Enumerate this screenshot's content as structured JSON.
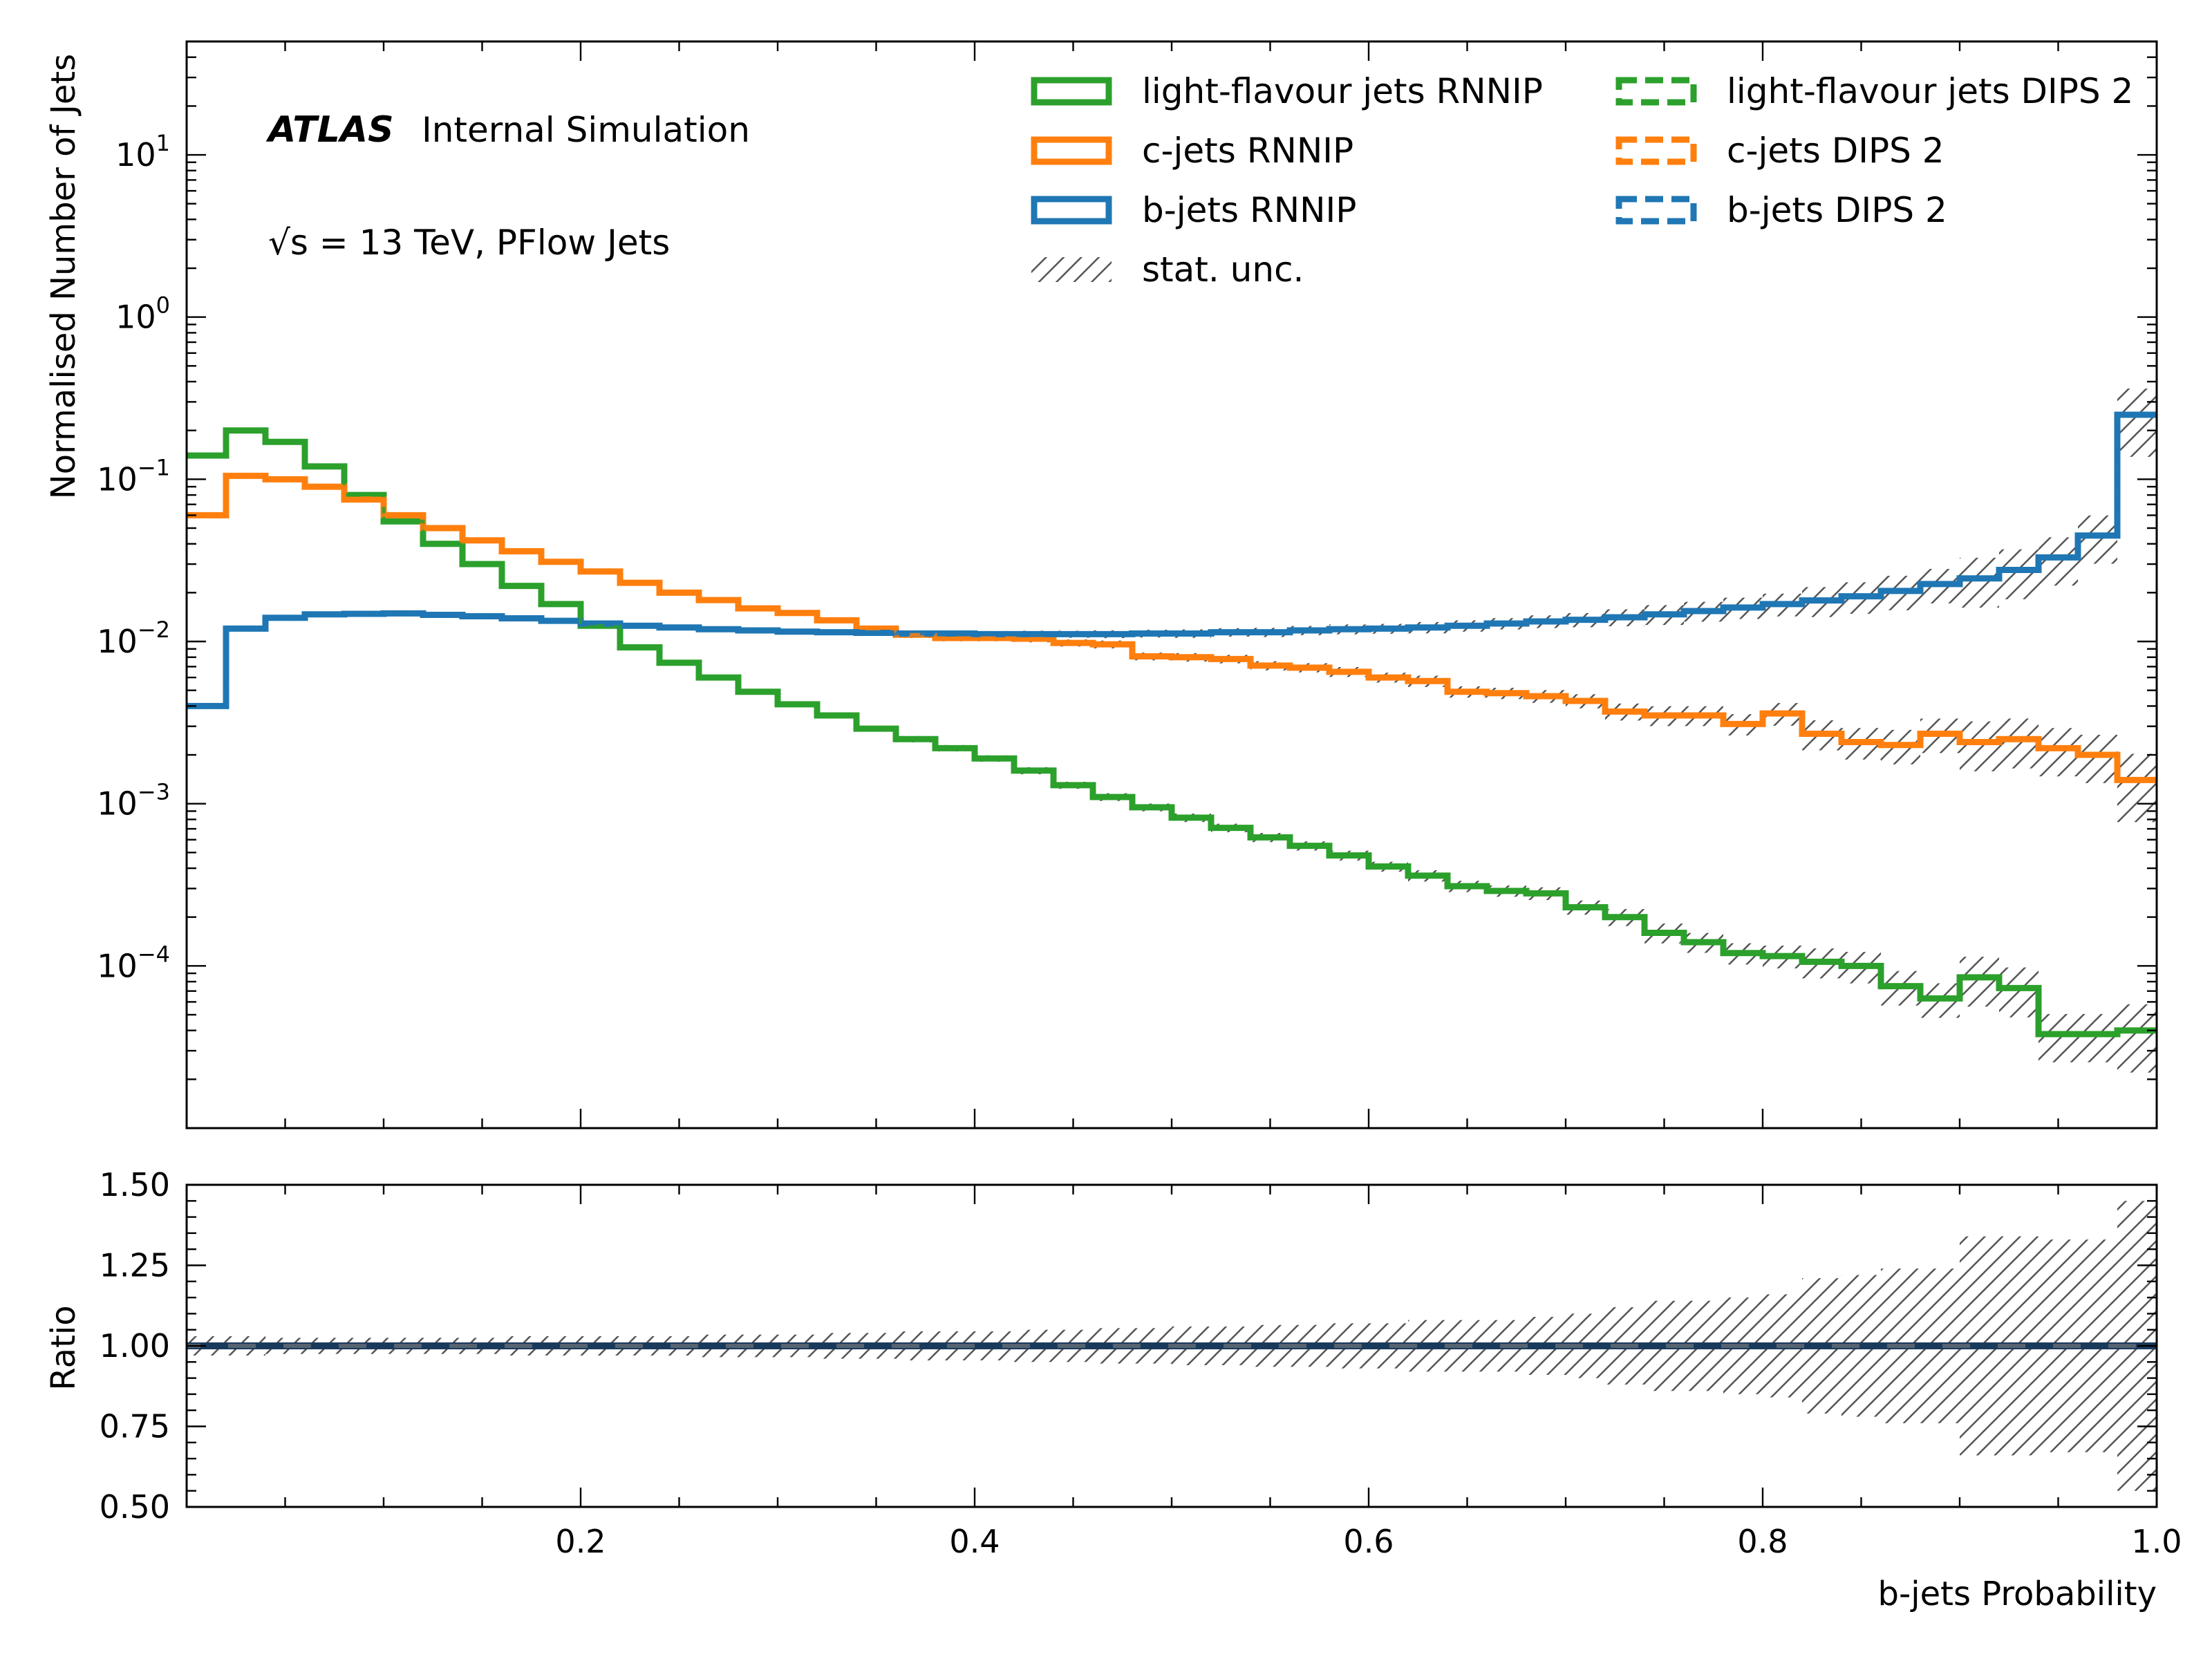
{
  "colors": {
    "light": "#2ca02c",
    "c": "#ff7f0e",
    "b": "#1f77b4",
    "unc": "#555555",
    "ratio_line": "#1a3a5c"
  },
  "atlas": {
    "brand": "ATLAS",
    "status": "Internal Simulation",
    "energy": "√s = 13 TeV, PFlow Jets"
  },
  "legend": [
    {
      "label": "light-flavour jets RNNIP",
      "style": "solid",
      "color": "light"
    },
    {
      "label": "c-jets RNNIP",
      "style": "solid",
      "color": "c"
    },
    {
      "label": "b-jets RNNIP",
      "style": "solid",
      "color": "b"
    },
    {
      "label": "stat. unc.",
      "style": "hatch",
      "color": "unc"
    },
    {
      "label": "light-flavour jets DIPS 2",
      "style": "dashed",
      "color": "light"
    },
    {
      "label": "c-jets DIPS 2",
      "style": "dashed",
      "color": "c"
    },
    {
      "label": "b-jets DIPS 2",
      "style": "dashed",
      "color": "b"
    }
  ],
  "chart_data": {
    "type": "step-histogram",
    "xlabel": "b-jets Probability",
    "xlim": [
      0,
      1
    ],
    "x_ticks": [
      "0.2",
      "0.4",
      "0.6",
      "0.8",
      "1.0"
    ],
    "bin_edges": [
      0,
      0.02,
      0.04,
      0.06,
      0.08,
      0.1,
      0.12,
      0.14,
      0.16,
      0.18,
      0.2,
      0.22,
      0.24,
      0.26,
      0.28,
      0.3,
      0.32,
      0.34,
      0.36,
      0.38,
      0.4,
      0.42,
      0.44,
      0.46,
      0.48,
      0.5,
      0.52,
      0.54,
      0.56,
      0.58,
      0.6,
      0.62,
      0.64,
      0.66,
      0.68,
      0.7,
      0.72,
      0.74,
      0.76,
      0.78,
      0.8,
      0.82,
      0.84,
      0.86,
      0.88,
      0.9,
      0.92,
      0.94,
      0.96,
      0.98,
      1.0
    ],
    "top": {
      "ylabel": "Normalised Number of Jets",
      "yscale": "log",
      "ylim": [
        1e-05,
        50
      ],
      "y_ticks": [
        {
          "base": "10",
          "exp": "1"
        },
        {
          "base": "10",
          "exp": "0"
        },
        {
          "base": "10",
          "exp": "−1"
        },
        {
          "base": "10",
          "exp": "−2"
        },
        {
          "base": "10",
          "exp": "−3"
        },
        {
          "base": "10",
          "exp": "−4"
        }
      ],
      "series": [
        {
          "name": "light-flavour jets RNNIP",
          "color": "light",
          "values": [
            0.14,
            0.2,
            0.17,
            0.12,
            0.08,
            0.055,
            0.04,
            0.03,
            0.022,
            0.017,
            0.0125,
            0.0092,
            0.0074,
            0.006,
            0.0049,
            0.0041,
            0.0035,
            0.0029,
            0.0025,
            0.0022,
            0.0019,
            0.0016,
            0.0013,
            0.0011,
            0.00095,
            0.00082,
            0.00071,
            0.00062,
            0.00055,
            0.00048,
            0.00041,
            0.00036,
            0.00031,
            0.00029,
            0.00028,
            0.00023,
            0.0002,
            0.00016,
            0.00014,
            0.00012,
            0.000115,
            0.000106,
            0.0001,
            7.5e-05,
            6.3e-05,
            8.5e-05,
            7.3e-05,
            3.8e-05,
            3.8e-05,
            4e-05
          ]
        },
        {
          "name": "c-jets RNNIP",
          "color": "c",
          "values": [
            0.06,
            0.105,
            0.1,
            0.09,
            0.075,
            0.06,
            0.05,
            0.042,
            0.036,
            0.031,
            0.027,
            0.023,
            0.02,
            0.018,
            0.016,
            0.015,
            0.0135,
            0.012,
            0.011,
            0.0105,
            0.0105,
            0.0104,
            0.0098,
            0.0096,
            0.0081,
            0.008,
            0.0078,
            0.0071,
            0.0069,
            0.0065,
            0.006,
            0.0057,
            0.0049,
            0.0048,
            0.0046,
            0.0043,
            0.0037,
            0.0035,
            0.0035,
            0.0031,
            0.0036,
            0.0027,
            0.0024,
            0.0023,
            0.0027,
            0.0024,
            0.0025,
            0.0022,
            0.002,
            0.0014
          ]
        },
        {
          "name": "b-jets RNNIP",
          "color": "b",
          "values": [
            0.004,
            0.012,
            0.014,
            0.0147,
            0.0148,
            0.0149,
            0.0146,
            0.0143,
            0.0139,
            0.0134,
            0.0129,
            0.0125,
            0.0122,
            0.0119,
            0.0117,
            0.0115,
            0.0114,
            0.0113,
            0.0112,
            0.0112,
            0.0111,
            0.0111,
            0.0111,
            0.0111,
            0.0112,
            0.0112,
            0.0114,
            0.0114,
            0.0117,
            0.0119,
            0.012,
            0.0122,
            0.0125,
            0.0129,
            0.0133,
            0.0136,
            0.0141,
            0.0147,
            0.0154,
            0.0162,
            0.017,
            0.0179,
            0.019,
            0.0205,
            0.0226,
            0.0245,
            0.0276,
            0.033,
            0.045,
            0.25
          ]
        }
      ]
    },
    "ratio": {
      "ylabel": "Ratio",
      "ylim": [
        0.5,
        1.5
      ],
      "y_ticks": [
        "1.50",
        "1.25",
        "1.00",
        "0.75",
        "0.50"
      ],
      "value": 1.0,
      "uncertainty": [
        0.03,
        0.03,
        0.025,
        0.025,
        0.025,
        0.025,
        0.025,
        0.025,
        0.03,
        0.03,
        0.03,
        0.03,
        0.03,
        0.035,
        0.035,
        0.035,
        0.04,
        0.04,
        0.045,
        0.045,
        0.045,
        0.05,
        0.05,
        0.055,
        0.055,
        0.06,
        0.06,
        0.065,
        0.065,
        0.07,
        0.07,
        0.08,
        0.08,
        0.08,
        0.09,
        0.1,
        0.12,
        0.14,
        0.14,
        0.15,
        0.16,
        0.21,
        0.22,
        0.24,
        0.24,
        0.34,
        0.34,
        0.33,
        0.33,
        0.45
      ]
    }
  }
}
